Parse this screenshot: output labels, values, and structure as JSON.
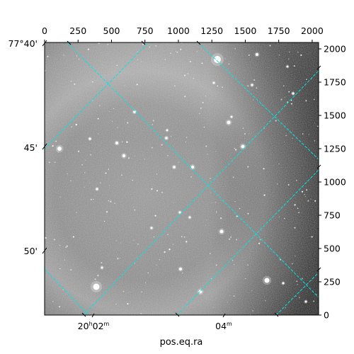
{
  "x_axis": {
    "label": "pos.eq.ra",
    "ra_ticks": [
      {
        "h": "20",
        "hsup": "h",
        "m": "02",
        "msup": "m"
      },
      {
        "h": "",
        "hsup": "",
        "m": "04",
        "msup": "m"
      }
    ]
  },
  "y_axis": {
    "dec_ticks": [
      "77°40'",
      "45'",
      "50'"
    ]
  },
  "pixel_axes": {
    "top_ticks": [
      "0",
      "250",
      "500",
      "750",
      "1000",
      "1250",
      "1500",
      "1750",
      "2000"
    ],
    "right_ticks": [
      "2000",
      "1750",
      "1500",
      "1250",
      "1000",
      "750",
      "500",
      "250",
      "0"
    ],
    "x_range": [
      0,
      2048
    ],
    "y_range": [
      0,
      2048
    ]
  },
  "image": {
    "type": "astronomical grayscale frame",
    "colormap": "gray",
    "grid_color": "#00e5e5",
    "grid_style": "dashed"
  }
}
